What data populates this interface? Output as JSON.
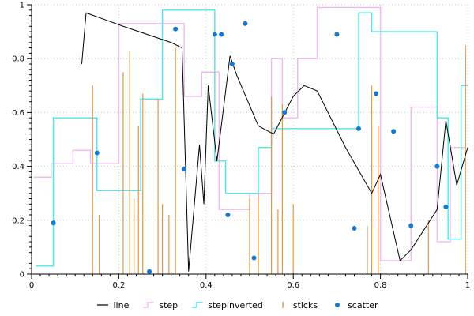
{
  "chart_data": {
    "type": "mixed",
    "title": "",
    "xlabel": "",
    "ylabel": "",
    "xlim": [
      0,
      1
    ],
    "ylim": [
      0,
      1
    ],
    "x_ticks": [
      0,
      0.2,
      0.4,
      0.6,
      0.8,
      1
    ],
    "y_ticks": [
      0,
      0.2,
      0.4,
      0.6,
      0.8,
      1
    ],
    "x_tick_labels": [
      "0",
      "0.2",
      "0.4",
      "0.6",
      "0.8",
      "1"
    ],
    "y_tick_labels": [
      "0",
      "0.2",
      "0.4",
      "0.6",
      "0.8",
      "1"
    ],
    "minor_tick_step": 0.02,
    "grid": "dotted",
    "legend_position": "bottom",
    "legend_order": [
      "line",
      "step",
      "stepinverted",
      "sticks",
      "scatter"
    ],
    "series": [
      {
        "name": "step",
        "type": "step",
        "color": "#eeb9ee",
        "points": [
          [
            0.005,
            0.36
          ],
          [
            0.045,
            0.41
          ],
          [
            0.095,
            0.46
          ],
          [
            0.135,
            0.41
          ],
          [
            0.2,
            0.93
          ],
          [
            0.35,
            0.66
          ],
          [
            0.39,
            0.75
          ],
          [
            0.43,
            0.24
          ],
          [
            0.5,
            0.3
          ],
          [
            0.55,
            0.8
          ],
          [
            0.575,
            0.58
          ],
          [
            0.61,
            0.8
          ],
          [
            0.655,
            0.99
          ],
          [
            0.8,
            0.05
          ],
          [
            0.87,
            0.62
          ],
          [
            0.93,
            0.12
          ],
          [
            0.96,
            0.47
          ],
          [
            0.995,
            0.82
          ]
        ]
      },
      {
        "name": "stepinverted",
        "type": "stepinverted",
        "color": "#55e3e8",
        "points": [
          [
            0.01,
            0.03
          ],
          [
            0.05,
            0.03
          ],
          [
            0.15,
            0.58
          ],
          [
            0.25,
            0.31
          ],
          [
            0.3,
            0.65
          ],
          [
            0.42,
            0.98
          ],
          [
            0.445,
            0.42
          ],
          [
            0.52,
            0.3
          ],
          [
            0.55,
            0.47
          ],
          [
            0.75,
            0.54
          ],
          [
            0.78,
            0.97
          ],
          [
            0.93,
            0.9
          ],
          [
            0.955,
            0.58
          ],
          [
            0.985,
            0.13
          ],
          [
            1.0,
            0.7
          ]
        ]
      },
      {
        "name": "sticks",
        "type": "sticks",
        "color": "#e0984a",
        "points": [
          [
            0.14,
            0.7
          ],
          [
            0.155,
            0.22
          ],
          [
            0.21,
            0.75
          ],
          [
            0.225,
            0.83
          ],
          [
            0.235,
            0.28
          ],
          [
            0.245,
            0.55
          ],
          [
            0.255,
            0.67
          ],
          [
            0.29,
            0.65
          ],
          [
            0.3,
            0.26
          ],
          [
            0.315,
            0.22
          ],
          [
            0.33,
            0.84
          ],
          [
            0.5,
            0.28
          ],
          [
            0.52,
            0.3
          ],
          [
            0.55,
            0.66
          ],
          [
            0.565,
            0.24
          ],
          [
            0.575,
            0.63
          ],
          [
            0.6,
            0.26
          ],
          [
            0.77,
            0.18
          ],
          [
            0.78,
            0.7
          ],
          [
            0.795,
            0.55
          ],
          [
            0.91,
            0.2
          ],
          [
            0.995,
            0.85
          ]
        ]
      },
      {
        "name": "line",
        "type": "line",
        "color": "#000000",
        "points": [
          [
            0.115,
            0.78
          ],
          [
            0.125,
            0.97
          ],
          [
            0.21,
            0.92
          ],
          [
            0.32,
            0.86
          ],
          [
            0.345,
            0.84
          ],
          [
            0.36,
            0.01
          ],
          [
            0.385,
            0.48
          ],
          [
            0.395,
            0.26
          ],
          [
            0.405,
            0.7
          ],
          [
            0.425,
            0.42
          ],
          [
            0.455,
            0.81
          ],
          [
            0.47,
            0.74
          ],
          [
            0.52,
            0.55
          ],
          [
            0.555,
            0.52
          ],
          [
            0.6,
            0.66
          ],
          [
            0.625,
            0.7
          ],
          [
            0.655,
            0.68
          ],
          [
            0.72,
            0.47
          ],
          [
            0.78,
            0.3
          ],
          [
            0.8,
            0.37
          ],
          [
            0.845,
            0.05
          ],
          [
            0.87,
            0.09
          ],
          [
            0.93,
            0.24
          ],
          [
            0.95,
            0.57
          ],
          [
            0.975,
            0.33
          ],
          [
            1.0,
            0.47
          ]
        ]
      },
      {
        "name": "scatter",
        "type": "scatter",
        "color": "#1778d2",
        "points": [
          [
            0.05,
            0.19
          ],
          [
            0.15,
            0.45
          ],
          [
            0.27,
            0.01
          ],
          [
            0.33,
            0.91
          ],
          [
            0.35,
            0.39
          ],
          [
            0.42,
            0.89
          ],
          [
            0.435,
            0.89
          ],
          [
            0.45,
            0.22
          ],
          [
            0.46,
            0.78
          ],
          [
            0.49,
            0.93
          ],
          [
            0.51,
            0.06
          ],
          [
            0.58,
            0.6
          ],
          [
            0.7,
            0.89
          ],
          [
            0.74,
            0.17
          ],
          [
            0.75,
            0.54
          ],
          [
            0.79,
            0.67
          ],
          [
            0.83,
            0.53
          ],
          [
            0.87,
            0.18
          ],
          [
            0.93,
            0.4
          ],
          [
            0.95,
            0.25
          ]
        ]
      }
    ]
  },
  "colors": {
    "background": "#ffffff",
    "grid": "#c8c8c8",
    "axis": "#000000",
    "tick_text": "#000000"
  }
}
